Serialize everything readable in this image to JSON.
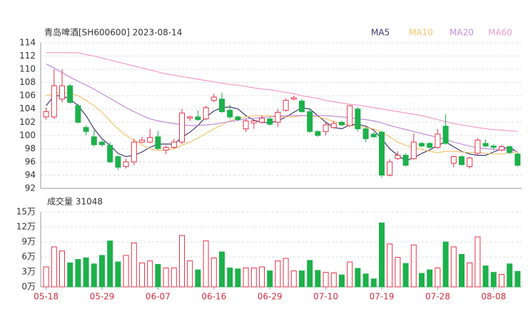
{
  "chart_data": [
    {
      "type": "candlestick",
      "title": "青岛啤酒[SH600600] 2023-08-14",
      "up_color": "#e8334a",
      "down_color": "#1db14b",
      "open": [
        102.8,
        102.8,
        105.5,
        107.5,
        104.5,
        101.2,
        99.8,
        99,
        98.5,
        96.8,
        95.3,
        96,
        99,
        99,
        99.8,
        97.8,
        98.2,
        99,
        102.6,
        102.8,
        102.5,
        105.3,
        105.5,
        103.8,
        102.8,
        101,
        101.9,
        102,
        102.5,
        102,
        103.8,
        105.5,
        105.2,
        103.6,
        100.6,
        100.6,
        101.2,
        102,
        101.5,
        104,
        101,
        100.2,
        100.5,
        94,
        96.5,
        97,
        96.5,
        98.8,
        98.8,
        98.2,
        101.4,
        95.8,
        96.8,
        95.3,
        97.3,
        98.8,
        98.4,
        97.8,
        98.3,
        97.2
      ],
      "high": [
        104.2,
        110,
        110,
        107.8,
        104.8,
        101.5,
        100.8,
        99.3,
        99,
        97,
        96.5,
        99.5,
        99.8,
        101,
        100.7,
        98.5,
        99.5,
        104,
        103,
        103.8,
        104.5,
        106.3,
        106.5,
        104.6,
        103,
        102.5,
        102.4,
        103,
        102.8,
        104,
        105.6,
        106,
        105.5,
        104,
        100.8,
        102,
        102.2,
        102.2,
        104.6,
        104.3,
        101.2,
        100.5,
        100.7,
        96.4,
        97.6,
        97.3,
        100.3,
        99,
        99,
        101,
        103.2,
        97,
        97,
        96.8,
        99.6,
        99.4,
        98.7,
        98.6,
        98.5,
        97.4
      ],
      "low": [
        102.4,
        102.5,
        105,
        104.8,
        101.8,
        100,
        98.3,
        98.3,
        95.8,
        94.8,
        95,
        95.5,
        98.8,
        98.8,
        97.8,
        97.2,
        98,
        98.7,
        102.2,
        102.2,
        102.3,
        105,
        103.4,
        102.5,
        102.2,
        100.5,
        101,
        101.8,
        101.5,
        101.3,
        103.6,
        105.3,
        103.4,
        100.4,
        99.8,
        100,
        101,
        101.4,
        101.3,
        100.6,
        99,
        99.6,
        93.6,
        93.8,
        96.3,
        95.3,
        96.3,
        98.2,
        98,
        98,
        98.6,
        95.2,
        95.4,
        95,
        97.1,
        98.2,
        97.9,
        97.6,
        97.2,
        95.3
      ],
      "close": [
        103.6,
        107.5,
        107.5,
        105,
        102,
        100.6,
        98.6,
        98.6,
        96,
        95.2,
        96,
        99,
        99.3,
        99.7,
        98,
        98.2,
        99,
        103.4,
        102.8,
        102.4,
        104.2,
        105.8,
        103.6,
        102.8,
        102.4,
        102.2,
        102.2,
        102.6,
        101.7,
        103.5,
        105.3,
        105.7,
        103.6,
        100.6,
        100,
        101.6,
        101.8,
        101.6,
        104.5,
        101,
        99.5,
        99.8,
        94,
        96,
        97,
        95.5,
        99,
        98.4,
        98.2,
        100.2,
        98.8,
        96.8,
        95.6,
        96.6,
        99.3,
        98.4,
        98.2,
        98.3,
        97.4,
        95.5
      ],
      "series": [
        {
          "name": "MA5",
          "color": "#3b3870",
          "values": [
            104.5,
            106,
            106,
            105.5,
            104.5,
            103,
            101,
            99.5,
            98.5,
            97.3,
            96.8,
            97,
            97.5,
            98.2,
            98.7,
            98.7,
            98.7,
            99.7,
            100.5,
            101.5,
            102.8,
            103.7,
            104.2,
            104.3,
            104,
            103,
            102.3,
            102,
            101.9,
            102.2,
            102.8,
            103.5,
            104.2,
            104,
            103,
            102,
            101.2,
            101,
            101.6,
            101.7,
            101.4,
            100.8,
            99.5,
            98,
            97,
            96.2,
            96.6,
            97.3,
            97.8,
            98.5,
            99,
            98.3,
            97.6,
            97.2,
            97,
            97,
            97.5,
            98,
            98.2,
            97.5
          ]
        },
        {
          "name": "MA10",
          "color": "#f2c46d",
          "values": [
            106,
            106.3,
            106.5,
            106.4,
            106,
            105.3,
            104.5,
            103.5,
            102.2,
            101,
            100,
            99.3,
            98.6,
            98,
            97.7,
            97.8,
            98,
            98.5,
            99,
            99.6,
            100.3,
            101,
            101.6,
            102.2,
            102.6,
            102.8,
            103,
            103,
            103,
            102.9,
            102.8,
            102.8,
            103,
            103,
            102.8,
            102.5,
            102.1,
            101.8,
            101.5,
            101.4,
            101.2,
            101,
            100.5,
            99.8,
            99,
            98.5,
            98.2,
            97.9,
            97.6,
            97.4,
            97.6,
            97.6,
            97.5,
            97.4,
            97.5,
            97.3,
            97.2,
            97.2,
            97.4,
            97.5
          ]
        },
        {
          "name": "MA20",
          "color": "#c48bdc",
          "values": [
            110.8,
            110.2,
            109.5,
            108.8,
            108.2,
            107.6,
            107,
            106.3,
            105.6,
            104.9,
            104.2,
            103.6,
            103,
            102.5,
            102.2,
            102,
            101.8,
            101.6,
            101.5,
            101.5,
            101.6,
            101.7,
            101.9,
            102.1,
            102.3,
            102.5,
            102.6,
            102.7,
            102.8,
            102.9,
            103,
            103,
            103,
            103,
            103,
            103,
            102.9,
            102.8,
            102.7,
            102.5,
            102.4,
            102.2,
            101.9,
            101.5,
            101.2,
            100.9,
            100.6,
            100.3,
            100,
            99.7,
            99.4,
            99,
            98.7,
            98.4,
            98.1,
            98,
            97.9,
            97.8,
            97.8,
            97.6
          ]
        },
        {
          "name": "MA60",
          "color": "#f09ccb",
          "values": [
            112.5,
            112.5,
            112.5,
            112.5,
            112.5,
            112.2,
            112,
            111.7,
            111.4,
            111.1,
            110.8,
            110.5,
            110.2,
            109.9,
            109.6,
            109.3,
            109.1,
            108.9,
            108.7,
            108.5,
            108.3,
            108.1,
            107.9,
            107.7,
            107.6,
            107.4,
            107.2,
            107,
            106.9,
            106.7,
            106.5,
            106.3,
            106,
            105.8,
            105.6,
            105.3,
            105.1,
            104.9,
            104.7,
            104.6,
            104.4,
            104.2,
            104,
            103.8,
            103.6,
            103.4,
            103.2,
            103,
            102.7,
            102.4,
            102.1,
            101.8,
            101.6,
            101.4,
            101.2,
            101,
            100.9,
            100.8,
            100.7,
            100.6
          ]
        }
      ],
      "ylim": [
        92,
        114
      ],
      "yticks": [
        92,
        94,
        96,
        98,
        100,
        102,
        104,
        106,
        108,
        110,
        112,
        114
      ],
      "grid": true
    },
    {
      "type": "bar",
      "title": "成交量 31048",
      "up_color": "#e8334a",
      "down_color": "#1db14b",
      "categories": [
        "05-18",
        null,
        null,
        null,
        null,
        null,
        null,
        "05-29",
        null,
        null,
        null,
        null,
        null,
        null,
        "06-07",
        null,
        null,
        null,
        null,
        null,
        null,
        "06-16",
        null,
        null,
        null,
        null,
        null,
        null,
        "06-29",
        null,
        null,
        null,
        null,
        null,
        null,
        "07-10",
        null,
        null,
        null,
        null,
        null,
        null,
        "07-19",
        null,
        null,
        null,
        null,
        null,
        null,
        "07-28",
        null,
        null,
        null,
        null,
        null,
        null,
        "08-08",
        null,
        null,
        null
      ],
      "values": [
        4,
        8,
        7.2,
        4.8,
        5.5,
        5.8,
        4.6,
        6.3,
        9.2,
        5,
        6.3,
        8.8,
        4.8,
        5.2,
        4.5,
        3.8,
        3.8,
        10.3,
        5.2,
        3.4,
        9.2,
        5.8,
        7,
        3.8,
        3.6,
        3.8,
        3.8,
        4,
        3.2,
        5.2,
        5.7,
        3.2,
        3.2,
        5.3,
        3.3,
        2.9,
        2.8,
        2.4,
        5,
        3.7,
        2.6,
        1.6,
        12.8,
        8.6,
        5.9,
        4.7,
        8.4,
        2.7,
        3.4,
        3.8,
        9,
        8,
        6.5,
        4.8,
        10,
        4.2,
        2.9,
        2.5,
        4.6,
        3.1048
      ],
      "ylim": [
        0,
        15
      ],
      "yticks": [
        {
          "value": 0,
          "label": "0万"
        },
        {
          "value": 3,
          "label": "3万"
        },
        {
          "value": 6,
          "label": "6万"
        },
        {
          "value": 9,
          "label": "9万"
        },
        {
          "value": 12,
          "label": "12万"
        },
        {
          "value": 15,
          "label": "15万"
        }
      ],
      "grid": true
    }
  ]
}
